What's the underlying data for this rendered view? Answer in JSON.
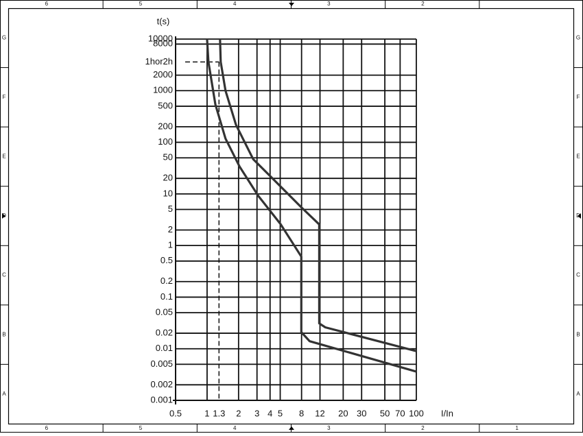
{
  "chart_data": {
    "type": "line",
    "y_label": "t(s)",
    "x_label": "I/In",
    "xlog": true,
    "ylog": true,
    "grid": true,
    "xlim": [
      0.5,
      100
    ],
    "ylim": [
      0.001,
      10000
    ],
    "xticks": [
      0.5,
      1,
      1.3,
      2,
      3,
      4,
      5,
      8,
      12,
      20,
      30,
      50,
      70,
      100
    ],
    "yticks": [
      10000,
      8000,
      {
        "value": 3600,
        "label": "1hor2h"
      },
      2000,
      1000,
      500,
      200,
      100,
      50,
      20,
      10,
      5,
      2,
      1,
      0.5,
      0.2,
      0.1,
      0.05,
      0.02,
      0.01,
      0.005,
      0.002,
      0.001
    ],
    "reference": {
      "x": 1.3,
      "y": 3600
    },
    "series": [
      {
        "color": "#333333",
        "x": [
          1.33,
          1.35,
          1.5,
          1.89,
          2.76,
          4.35,
          7.96,
          11.8,
          11.8,
          13.5,
          100
        ],
        "values": [
          10000,
          3600,
          1000,
          217,
          47,
          18.8,
          5.5,
          2.57,
          0.031,
          0.026,
          0.009
        ]
      },
      {
        "color": "#333333",
        "x": [
          1,
          1.03,
          1.2,
          1.5,
          2.04,
          3.07,
          5.06,
          7.96,
          7.96,
          9.55,
          100
        ],
        "values": [
          10000,
          3600,
          543,
          118,
          34,
          9.3,
          2.57,
          0.61,
          0.021,
          0.014,
          0.0036
        ]
      }
    ]
  },
  "frame": {
    "top": [
      "6",
      "5",
      "4",
      "3",
      "2"
    ],
    "bottom": [
      "6",
      "5",
      "4",
      "3",
      "2",
      "1"
    ],
    "left": [
      "G",
      "F",
      "E",
      "D",
      "C",
      "B",
      "A"
    ],
    "right": [
      "G",
      "F",
      "E",
      "D",
      "C",
      "B",
      "A"
    ]
  }
}
